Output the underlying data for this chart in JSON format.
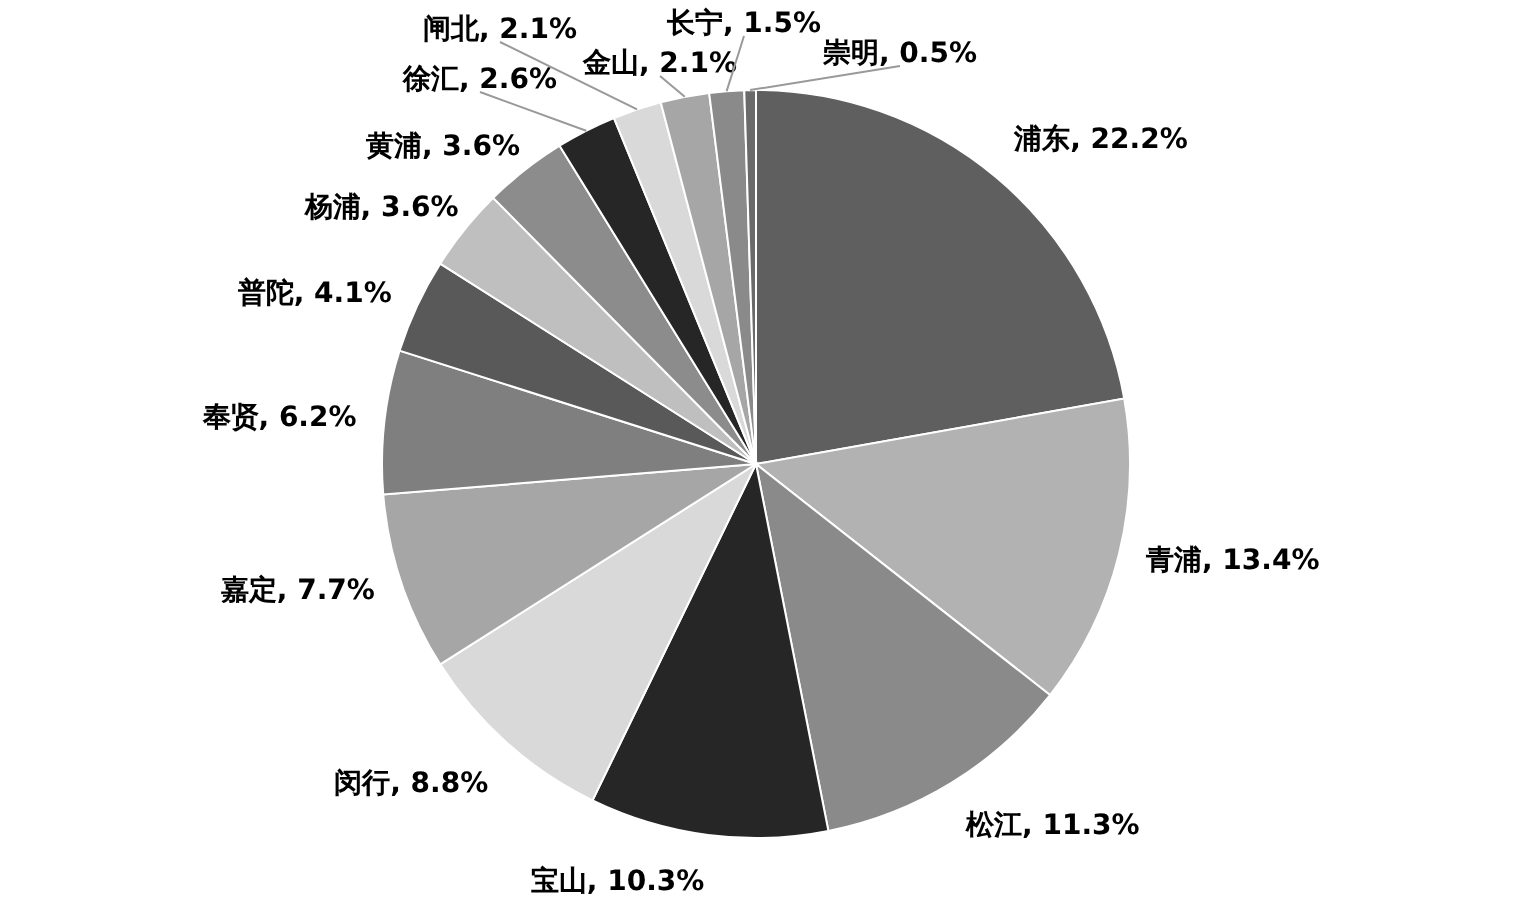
{
  "chart_data": {
    "type": "pie",
    "categories": [
      "浦东",
      "青浦",
      "松江",
      "宝山",
      "闵行",
      "嘉定",
      "奉贤",
      "普陀",
      "杨浦",
      "黄浦",
      "徐汇",
      "闸北",
      "金山",
      "长宁",
      "崇明"
    ],
    "values": [
      22.2,
      13.4,
      11.3,
      10.3,
      8.8,
      7.7,
      6.2,
      4.1,
      3.6,
      3.6,
      2.6,
      2.1,
      2.1,
      1.5,
      0.5
    ],
    "value_labels": [
      "22.2%",
      "13.4%",
      "11.3%",
      "10.3%",
      "8.8%",
      "7.7%",
      "6.2%",
      "4.1%",
      "3.6%",
      "3.6%",
      "2.6%",
      "2.1%",
      "2.1%",
      "1.5%",
      "0.5%"
    ],
    "colors": [
      "#5f5f5f",
      "#b2b2b2",
      "#8a8a8a",
      "#262626",
      "#d9d9d9",
      "#a6a6a6",
      "#7f7f7f",
      "#595959",
      "#bfbfbf",
      "#8c8c8c",
      "#262626",
      "#d9d9d9",
      "#a6a6a6",
      "#8a8a8a",
      "#6a6a6a"
    ],
    "data_labels": true
  }
}
